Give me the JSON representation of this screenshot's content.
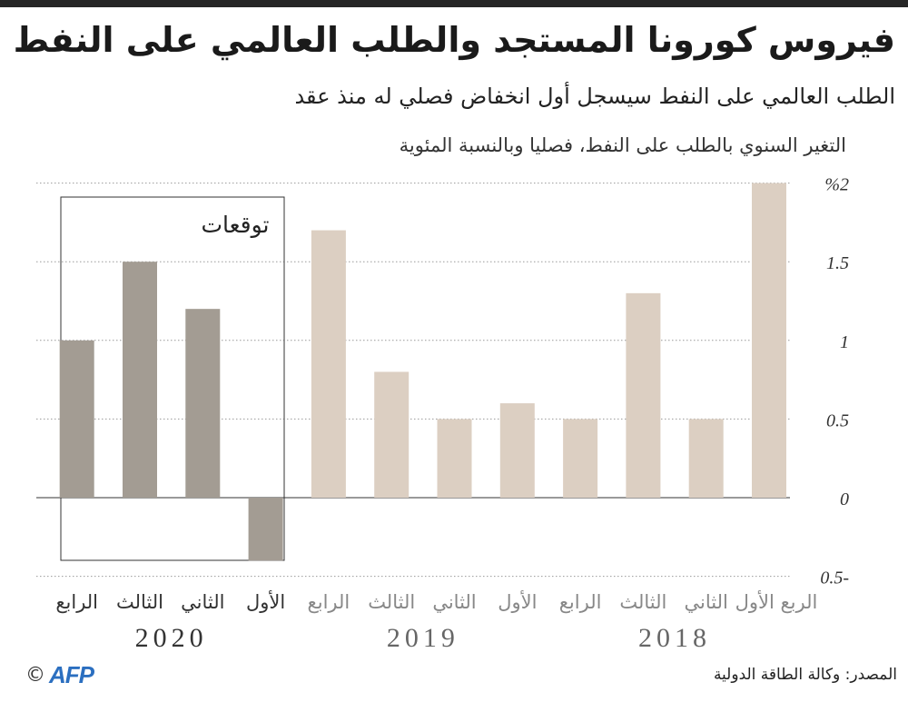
{
  "header": {
    "title": "فيروس كورونا المستجد والطلب العالمي على النفط",
    "subtitle": "الطلب العالمي على النفط سيسجل أول انخفاض فصلي له منذ عقد"
  },
  "chart_data": {
    "type": "bar",
    "title": "فيروس كورونا المستجد والطلب العالمي على النفط",
    "ylabel": "التغير السنوي بالطلب على النفط، فصليا وبالنسبة المئوية",
    "ylim": [
      -0.5,
      2
    ],
    "yticks": [
      {
        "value": 2,
        "label": "%2"
      },
      {
        "value": 1.5,
        "label": "1.5"
      },
      {
        "value": 1,
        "label": "1"
      },
      {
        "value": 0.5,
        "label": "0.5"
      },
      {
        "value": 0,
        "label": "0"
      },
      {
        "value": -0.5,
        "label": "-0.5"
      }
    ],
    "grid": true,
    "direction": "right-to-left",
    "forecast_label": "توقعات",
    "years": [
      {
        "year": "2018",
        "quarters": [
          {
            "label": "الربع الأول",
            "value": 2.0
          },
          {
            "label": "الثاني",
            "value": 0.5
          },
          {
            "label": "الثالث",
            "value": 1.3
          },
          {
            "label": "الرابع",
            "value": 0.5
          }
        ]
      },
      {
        "year": "2019",
        "quarters": [
          {
            "label": "الأول",
            "value": 0.6
          },
          {
            "label": "الثاني",
            "value": 0.5
          },
          {
            "label": "الثالث",
            "value": 0.8
          },
          {
            "label": "الرابع",
            "value": 1.7
          }
        ]
      },
      {
        "year": "2020",
        "forecast": true,
        "quarters": [
          {
            "label": "الأول",
            "value": -0.4
          },
          {
            "label": "الثاني",
            "value": 1.2
          },
          {
            "label": "الثالث",
            "value": 1.5
          },
          {
            "label": "الرابع",
            "value": 1.0
          }
        ]
      }
    ],
    "colors": {
      "actual": "#dccfc2",
      "forecast": "#a39c93",
      "grid": "#9a9a9a"
    }
  },
  "footer": {
    "source": "المصدر: وكالة الطاقة الدولية",
    "copyright": "©",
    "logo": "AFP"
  }
}
